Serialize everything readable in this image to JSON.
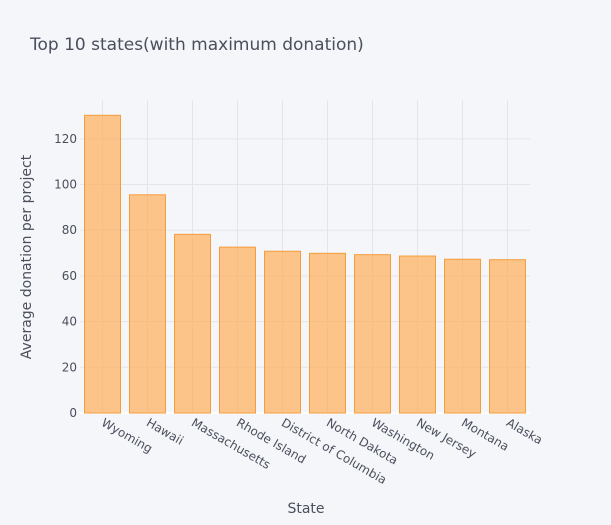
{
  "chart_data": {
    "type": "bar",
    "title": "Top 10 states(with maximum donation)",
    "xlabel": "State",
    "ylabel": "Average donation per project",
    "categories": [
      "Wyoming",
      "Hawaii",
      "Massachusetts",
      "Rhode Island",
      "District of Columbia",
      "North Dakota",
      "Washington",
      "New Jersey",
      "Montana",
      "Alaska"
    ],
    "values": [
      130.3,
      95.5,
      78.2,
      72.6,
      70.8,
      69.9,
      69.3,
      68.7,
      67.3,
      67.1
    ],
    "ylim": [
      0,
      137
    ],
    "yticks": [
      0,
      20,
      40,
      60,
      80,
      100,
      120
    ],
    "grid": true,
    "legend": "none",
    "colors": {
      "bar_fill": "#ffa94d",
      "bar_stroke": "#f59c3c",
      "background": "#f5f6fa",
      "grid": "#e3e5ec",
      "text": "#4a4f5c"
    }
  }
}
